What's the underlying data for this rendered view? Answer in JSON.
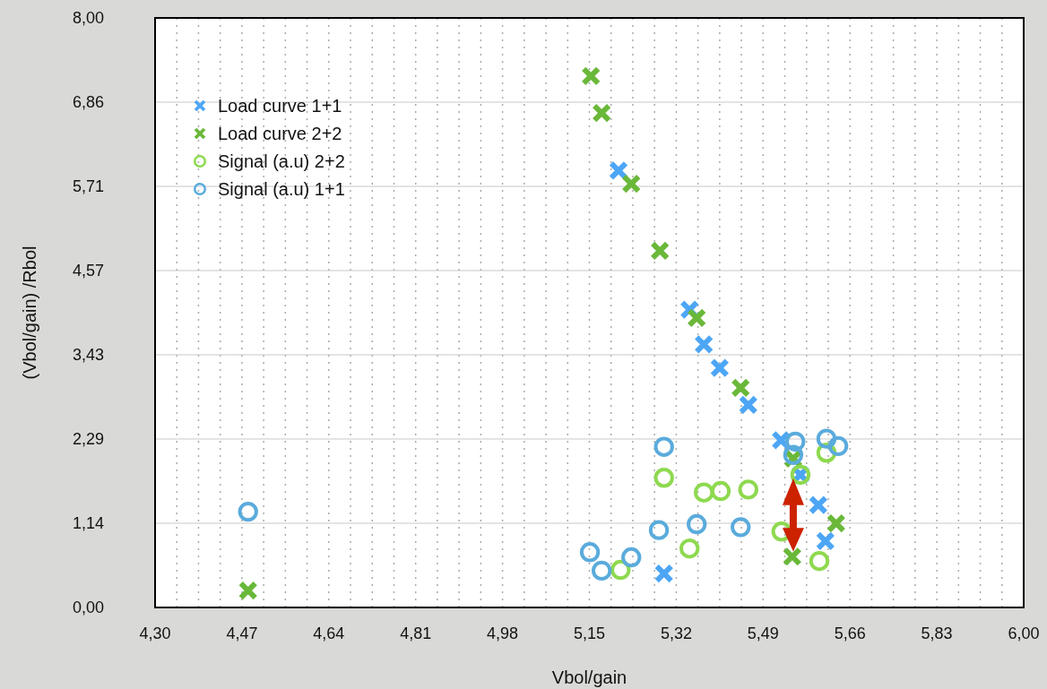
{
  "chart_data": {
    "type": "scatter",
    "xlabel": "Vbol/gain",
    "ylabel": "(Vbol/gain) /Rbol",
    "xlim": [
      4.3,
      6.0
    ],
    "xticks": [
      {
        "value": 4.3,
        "label": "4,30"
      },
      {
        "value": 4.47,
        "label": "4,47"
      },
      {
        "value": 4.64,
        "label": "4,64"
      },
      {
        "value": 4.81,
        "label": "4,81"
      },
      {
        "value": 4.98,
        "label": "4,98"
      },
      {
        "value": 5.15,
        "label": "5,15"
      },
      {
        "value": 5.32,
        "label": "5,32"
      },
      {
        "value": 5.49,
        "label": "5,49"
      },
      {
        "value": 5.66,
        "label": "5,66"
      },
      {
        "value": 5.83,
        "label": "5,83"
      },
      {
        "value": 6.0,
        "label": "6,00"
      }
    ],
    "ylim": [
      0,
      8
    ],
    "yticks": [
      {
        "value": 0,
        "label": "0,00"
      },
      {
        "value": 1.143,
        "label": "1,14"
      },
      {
        "value": 2.286,
        "label": "2,29"
      },
      {
        "value": 3.429,
        "label": "3,43"
      },
      {
        "value": 4.571,
        "label": "4,57"
      },
      {
        "value": 5.714,
        "label": "5,71"
      },
      {
        "value": 6.857,
        "label": "6,86"
      },
      {
        "value": 8,
        "label": "8,00"
      }
    ],
    "grid": true,
    "legend": "top left",
    "series": [
      {
        "name": "Load curve 1+1",
        "color": "#4da6f5",
        "marker": "cross",
        "x": [
          5.207,
          5.346,
          5.374,
          5.405,
          5.461,
          5.525,
          5.563,
          5.598,
          5.612,
          5.296
        ],
        "values": [
          5.93,
          4.04,
          3.57,
          3.25,
          2.75,
          2.27,
          1.8,
          1.39,
          0.9,
          0.46
        ]
      },
      {
        "name": "Load curve 2+2",
        "color": "#6ab83a",
        "marker": "cross",
        "x": [
          5.153,
          5.174,
          5.232,
          5.288,
          5.36,
          5.446,
          5.549,
          5.633,
          5.547,
          4.482
        ],
        "values": [
          7.21,
          6.71,
          5.75,
          4.84,
          3.93,
          2.98,
          2.02,
          1.14,
          0.69,
          0.23
        ]
      },
      {
        "name": "Signal (a.u) 2+2",
        "color": "#8ed94f",
        "marker": "circle",
        "x": [
          5.296,
          5.374,
          5.407,
          5.461,
          5.346,
          5.211,
          5.526,
          5.6,
          5.614,
          5.563
        ],
        "values": [
          1.76,
          1.56,
          1.58,
          1.6,
          0.8,
          0.51,
          1.03,
          0.63,
          2.1,
          1.8
        ]
      },
      {
        "name": "Signal (a.u) 1+1",
        "color": "#5aabdc",
        "marker": "circle",
        "x": [
          4.482,
          5.296,
          5.286,
          5.36,
          5.446,
          5.151,
          5.174,
          5.232,
          5.553,
          5.549,
          5.614,
          5.637
        ],
        "values": [
          1.3,
          2.18,
          1.05,
          1.13,
          1.09,
          0.75,
          0.5,
          0.68,
          2.25,
          2.07,
          2.29,
          2.19
        ]
      }
    ]
  }
}
